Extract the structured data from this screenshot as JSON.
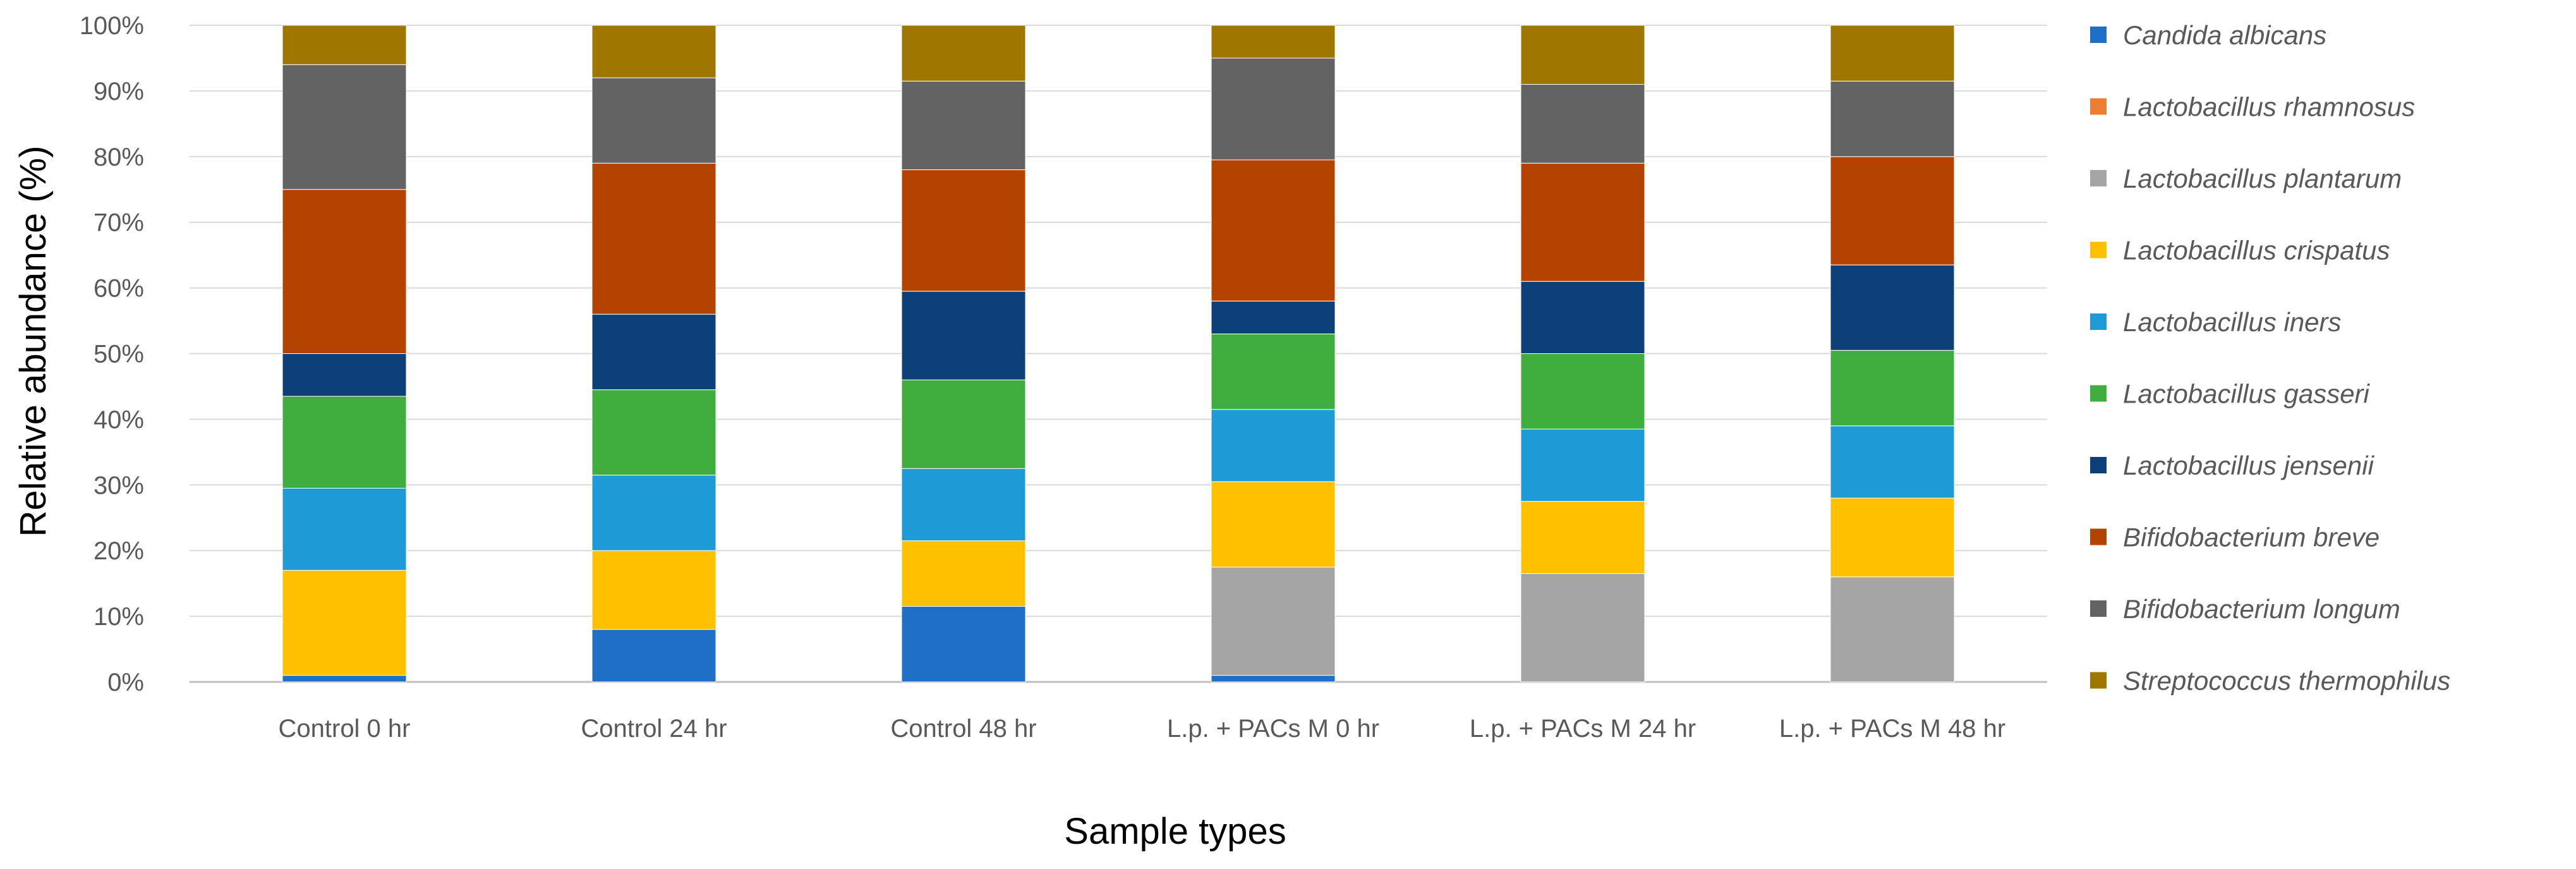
{
  "chart_data": {
    "type": "stacked_bar_100",
    "title": "",
    "xlabel": "Sample types",
    "ylabel": "Relative abundance (%)",
    "ylim": [
      0,
      100
    ],
    "yticks": [
      "0%",
      "10%",
      "20%",
      "30%",
      "40%",
      "50%",
      "60%",
      "70%",
      "80%",
      "90%",
      "100%"
    ],
    "grid": true,
    "legend_position": "right",
    "categories": [
      "Control 0 hr",
      "Control 24 hr",
      "Control 48 hr",
      "L.p. + PACs M 0 hr",
      "L.p. + PACs M 24 hr",
      "L.p. + PACs M 48 hr"
    ],
    "series": [
      {
        "name": "Candida albicans",
        "color": "#1f6fc6",
        "values": [
          1.0,
          8.0,
          11.5,
          1.0,
          0.0,
          0.0
        ]
      },
      {
        "name": "Lactobacillus rhamnosus",
        "color": "#ed7d31",
        "values": [
          0.0,
          0.0,
          0.0,
          0.0,
          0.0,
          0.0
        ]
      },
      {
        "name": "Lactobacillus plantarum",
        "color": "#a5a5a5",
        "values": [
          0.0,
          0.0,
          0.0,
          16.5,
          16.5,
          16.0
        ]
      },
      {
        "name": "Lactobacillus crispatus",
        "color": "#ffc000",
        "values": [
          16.0,
          12.0,
          10.0,
          13.0,
          11.0,
          12.0
        ]
      },
      {
        "name": "Lactobacillus iners",
        "color": "#1e9ad6",
        "values": [
          12.5,
          11.5,
          11.0,
          11.0,
          11.0,
          11.0
        ]
      },
      {
        "name": "Lactobacillus gasseri",
        "color": "#3fae3f",
        "values": [
          14.0,
          13.0,
          13.5,
          11.5,
          11.5,
          11.5
        ]
      },
      {
        "name": "Lactobacillus jensenii",
        "color": "#0d3f78",
        "values": [
          6.5,
          11.5,
          13.5,
          5.0,
          11.0,
          13.0
        ]
      },
      {
        "name": "Bifidobacterium breve",
        "color": "#b54300",
        "values": [
          25.0,
          23.0,
          18.5,
          21.5,
          18.0,
          16.5
        ]
      },
      {
        "name": "Bifidobacterium longum",
        "color": "#636363",
        "values": [
          19.0,
          13.0,
          13.5,
          15.5,
          12.0,
          11.5
        ]
      },
      {
        "name": "Streptococcus thermophilus",
        "color": "#9e7600",
        "values": [
          6.0,
          8.0,
          8.5,
          5.0,
          9.0,
          8.5
        ]
      }
    ]
  }
}
